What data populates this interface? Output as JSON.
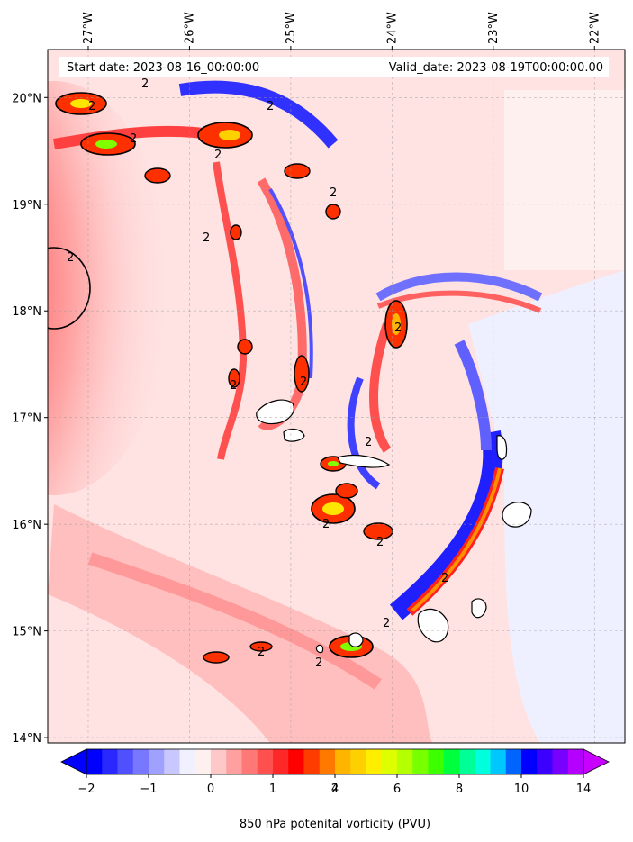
{
  "header": {
    "start_date": "Start date: 2023-08-16_00:00:00",
    "valid_date": "Valid_date: 2023-08-19T00:00:00.00"
  },
  "map": {
    "lon_range": [
      -27.4,
      -21.7
    ],
    "lat_range": [
      13.95,
      20.45
    ],
    "lon_ticks": [
      "27°W",
      "26°W",
      "25°W",
      "24°W",
      "23°W",
      "22°W"
    ],
    "lon_tick_values": [
      -27,
      -26,
      -25,
      -24,
      -23,
      -22
    ],
    "lat_ticks": [
      "20°N",
      "19°N",
      "18°N",
      "17°N",
      "16°N",
      "15°N",
      "14°N"
    ],
    "lat_tick_values": [
      20,
      19,
      18,
      17,
      16,
      15,
      14
    ],
    "gridlines": true,
    "contour_level_label": "2"
  },
  "colorbar": {
    "tick_labels": [
      "−2",
      "−1",
      "0",
      "1",
      "2",
      "4",
      "6",
      "8",
      "10",
      "14"
    ],
    "label": "850 hPa potenital vorticity (PVU)",
    "colors": [
      "#0000ff",
      "#2828ff",
      "#5050ff",
      "#7878ff",
      "#a0a0ff",
      "#c8c8ff",
      "#f0f0ff",
      "#fff0f0",
      "#ffc8c8",
      "#ffa0a0",
      "#ff7878",
      "#ff5050",
      "#ff2828",
      "#ff0000",
      "#ff3c00",
      "#ff7800",
      "#ffb400",
      "#ffd000",
      "#ffee00",
      "#ddff00",
      "#b4ff00",
      "#78ff00",
      "#3cff00",
      "#00ff3c",
      "#00ff96",
      "#00ffdc",
      "#00c8ff",
      "#0064ff",
      "#0000ff",
      "#3c00ff",
      "#7800ff",
      "#b400ff"
    ],
    "extend": "both"
  }
}
